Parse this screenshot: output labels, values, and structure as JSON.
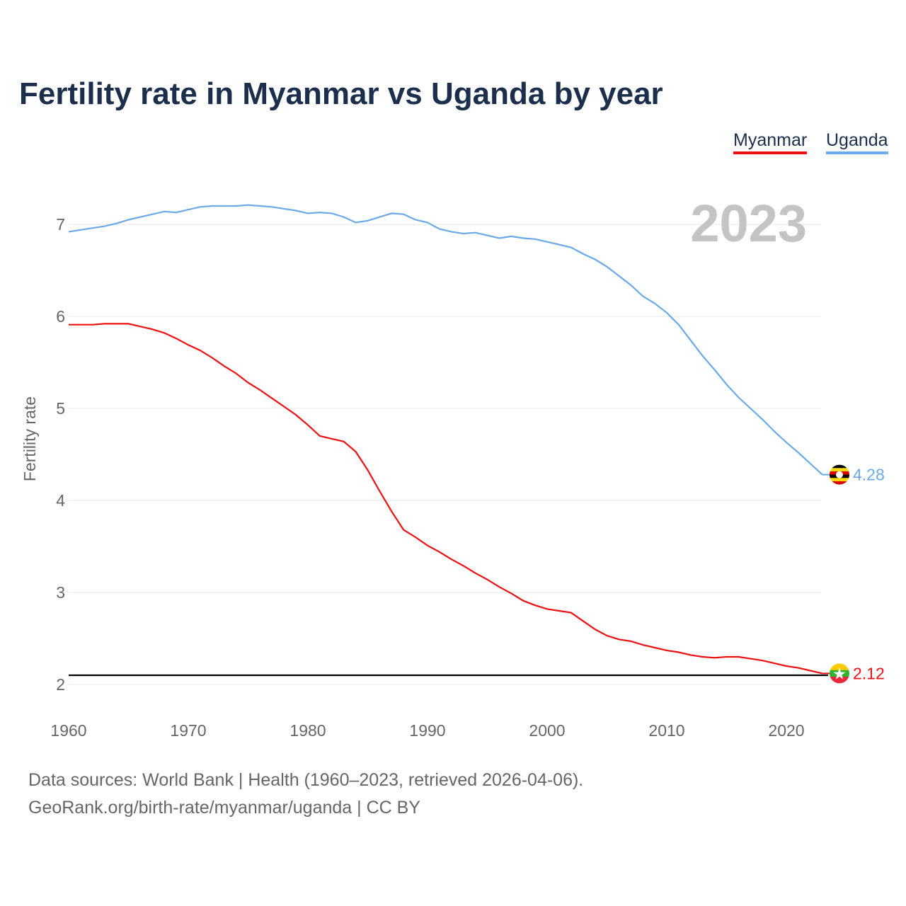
{
  "title": "Fertility rate in Myanmar vs Uganda by year",
  "legend": {
    "myanmar": "Myanmar",
    "uganda": "Uganda"
  },
  "year_label": "2023",
  "footer": {
    "line1": "Data sources: World Bank | Health (1960–2023, retrieved 2026-04-06).",
    "line2": "GeoRank.org/birth-rate/myanmar/uganda | CC BY"
  },
  "chart_data": {
    "type": "line",
    "title": "Fertility rate in Myanmar vs Uganda by year",
    "xlabel": "",
    "ylabel": "Fertility rate",
    "xlim": [
      1960,
      2023
    ],
    "ylim": [
      2,
      7.4
    ],
    "xticks": [
      1960,
      1970,
      1980,
      1990,
      2000,
      2010,
      2020
    ],
    "yticks": [
      2,
      3,
      4,
      5,
      6,
      7
    ],
    "reference_line": 2.1,
    "legend_position": "top-right",
    "end_labels": {
      "Myanmar": "2.12",
      "Uganda": "4.28"
    },
    "x": [
      1960,
      1961,
      1962,
      1963,
      1964,
      1965,
      1966,
      1967,
      1968,
      1969,
      1970,
      1971,
      1972,
      1973,
      1974,
      1975,
      1976,
      1977,
      1978,
      1979,
      1980,
      1981,
      1982,
      1983,
      1984,
      1985,
      1986,
      1987,
      1988,
      1989,
      1990,
      1991,
      1992,
      1993,
      1994,
      1995,
      1996,
      1997,
      1998,
      1999,
      2000,
      2001,
      2002,
      2003,
      2004,
      2005,
      2006,
      2007,
      2008,
      2009,
      2010,
      2011,
      2012,
      2013,
      2014,
      2015,
      2016,
      2017,
      2018,
      2019,
      2020,
      2021,
      2022,
      2023
    ],
    "series": [
      {
        "name": "Myanmar",
        "color": "#ee1111",
        "values": [
          5.91,
          5.91,
          5.91,
          5.92,
          5.92,
          5.92,
          5.89,
          5.86,
          5.82,
          5.76,
          5.69,
          5.63,
          5.55,
          5.46,
          5.38,
          5.28,
          5.2,
          5.11,
          5.02,
          4.93,
          4.82,
          4.7,
          4.67,
          4.64,
          4.53,
          4.33,
          4.1,
          3.88,
          3.68,
          3.6,
          3.51,
          3.44,
          3.36,
          3.29,
          3.21,
          3.14,
          3.06,
          2.99,
          2.91,
          2.86,
          2.82,
          2.8,
          2.78,
          2.69,
          2.6,
          2.53,
          2.49,
          2.47,
          2.43,
          2.4,
          2.37,
          2.35,
          2.32,
          2.3,
          2.29,
          2.3,
          2.3,
          2.28,
          2.26,
          2.23,
          2.2,
          2.18,
          2.15,
          2.12
        ]
      },
      {
        "name": "Uganda",
        "color": "#6aaae8",
        "values": [
          6.92,
          6.94,
          6.96,
          6.98,
          7.01,
          7.05,
          7.08,
          7.11,
          7.14,
          7.13,
          7.16,
          7.19,
          7.2,
          7.2,
          7.2,
          7.21,
          7.2,
          7.19,
          7.17,
          7.15,
          7.12,
          7.13,
          7.12,
          7.08,
          7.02,
          7.04,
          7.08,
          7.12,
          7.11,
          7.05,
          7.02,
          6.95,
          6.92,
          6.9,
          6.91,
          6.88,
          6.85,
          6.87,
          6.85,
          6.84,
          6.81,
          6.78,
          6.75,
          6.68,
          6.62,
          6.54,
          6.44,
          6.34,
          6.22,
          6.14,
          6.04,
          5.91,
          5.74,
          5.57,
          5.42,
          5.26,
          5.12,
          5.0,
          4.88,
          4.75,
          4.63,
          4.52,
          4.4,
          4.28
        ]
      }
    ]
  }
}
